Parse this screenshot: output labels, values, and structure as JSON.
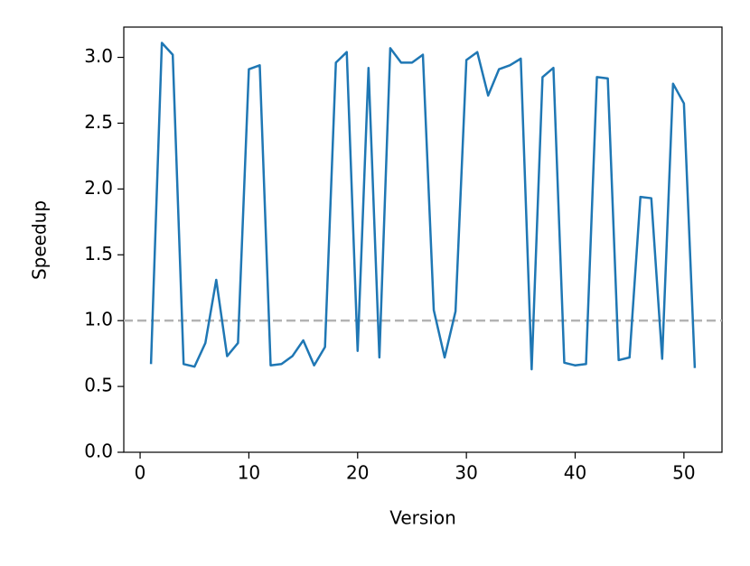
{
  "chart_data": {
    "type": "line",
    "x_label": "Version",
    "y_label": "Speedup",
    "x": [
      1,
      2,
      3,
      4,
      5,
      6,
      7,
      8,
      9,
      10,
      11,
      12,
      13,
      14,
      15,
      16,
      17,
      18,
      19,
      20,
      21,
      22,
      23,
      24,
      25,
      26,
      27,
      28,
      29,
      30,
      31,
      32,
      33,
      34,
      35,
      36,
      37,
      38,
      39,
      40,
      41,
      42,
      43,
      44,
      45,
      46,
      47,
      48,
      49,
      50,
      51
    ],
    "series": [
      {
        "color": "#1f77b4",
        "values": [
          0.67,
          3.11,
          3.02,
          0.67,
          0.65,
          0.83,
          1.31,
          0.73,
          0.83,
          2.91,
          2.94,
          0.66,
          0.67,
          0.73,
          0.85,
          0.66,
          0.8,
          2.96,
          3.04,
          0.77,
          2.92,
          0.72,
          3.07,
          2.96,
          2.96,
          3.02,
          1.08,
          0.72,
          1.07,
          2.98,
          3.04,
          2.71,
          2.91,
          2.94,
          2.99,
          0.63,
          2.85,
          2.92,
          0.68,
          0.66,
          0.67,
          2.85,
          2.84,
          0.7,
          0.72,
          1.94,
          1.93,
          0.71,
          2.8,
          2.65,
          0.64
        ]
      }
    ],
    "reference_line": {
      "value": 1,
      "color": "#b3b3b3",
      "style": "dashed"
    },
    "xlim": [
      -1.5,
      53.5
    ],
    "ylim": [
      0,
      3.23
    ],
    "xticks": [
      0,
      10,
      20,
      30,
      40,
      50
    ],
    "yticks": [
      {
        "value": 0,
        "label": "0.0"
      },
      0.5,
      {
        "value": 1,
        "label": "1.0"
      },
      1.5,
      {
        "value": 2,
        "label": "2.0"
      },
      2.5,
      {
        "value": 3,
        "label": "3.0"
      }
    ],
    "grid": false
  }
}
